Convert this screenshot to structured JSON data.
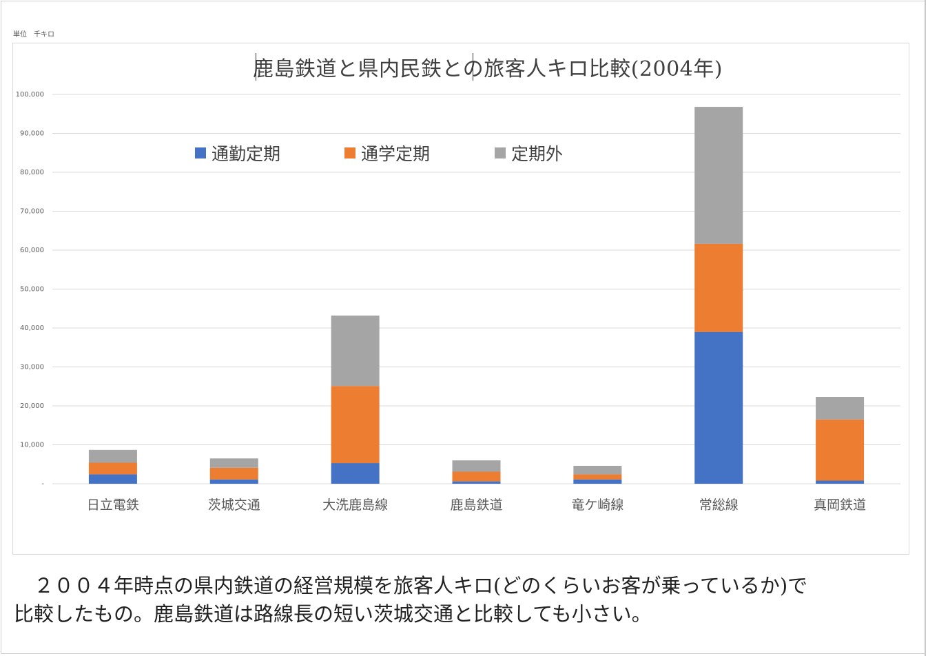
{
  "unit_note": "単位　千キロ",
  "chart_title": "鹿島鉄道と県内民鉄との旅客人キロ比較(2004年)",
  "colors": {
    "commuter": "#4472C4",
    "student": "#ED7D31",
    "other": "#A5A5A5",
    "grid": "#d9d9d9",
    "axis_text": "#595959"
  },
  "chart_data": {
    "type": "bar",
    "stacked": true,
    "title": "鹿島鉄道と県内民鉄との旅客人キロ比較(2004年)",
    "categories": [
      "日立電鉄",
      "茨城交通",
      "大洗鹿島線",
      "鹿島鉄道",
      "竜ケ崎線",
      "常総線",
      "真岡鉄道"
    ],
    "series": [
      {
        "name": "通勤定期",
        "color": "#4472C4",
        "values": [
          2400,
          1100,
          5300,
          600,
          1100,
          39000,
          800
        ]
      },
      {
        "name": "通学定期",
        "color": "#ED7D31",
        "values": [
          3000,
          3000,
          19800,
          2500,
          1300,
          22600,
          15700
        ]
      },
      {
        "name": "定期外",
        "color": "#A5A5A5",
        "values": [
          3300,
          2400,
          18100,
          2900,
          2200,
          35200,
          5800
        ]
      }
    ],
    "ylim": [
      0,
      100000
    ],
    "yticks": [
      0,
      10000,
      20000,
      30000,
      40000,
      50000,
      60000,
      70000,
      80000,
      90000,
      100000
    ],
    "ytick_labels": [
      "-",
      "10,000",
      "20,000",
      "30,000",
      "40,000",
      "50,000",
      "60,000",
      "70,000",
      "80,000",
      "90,000",
      "100,000"
    ],
    "grid": true,
    "legend_position": "top-left-inside",
    "xlabel": "",
    "ylabel": ""
  },
  "caption": {
    "line1": "　２００４年時点の県内鉄道の経営規模を旅客人キロ(どのくらいお客が乗っているか)で",
    "line2": "比較したもの。鹿島鉄道は路線長の短い茨城交通と比較しても小さい。"
  }
}
